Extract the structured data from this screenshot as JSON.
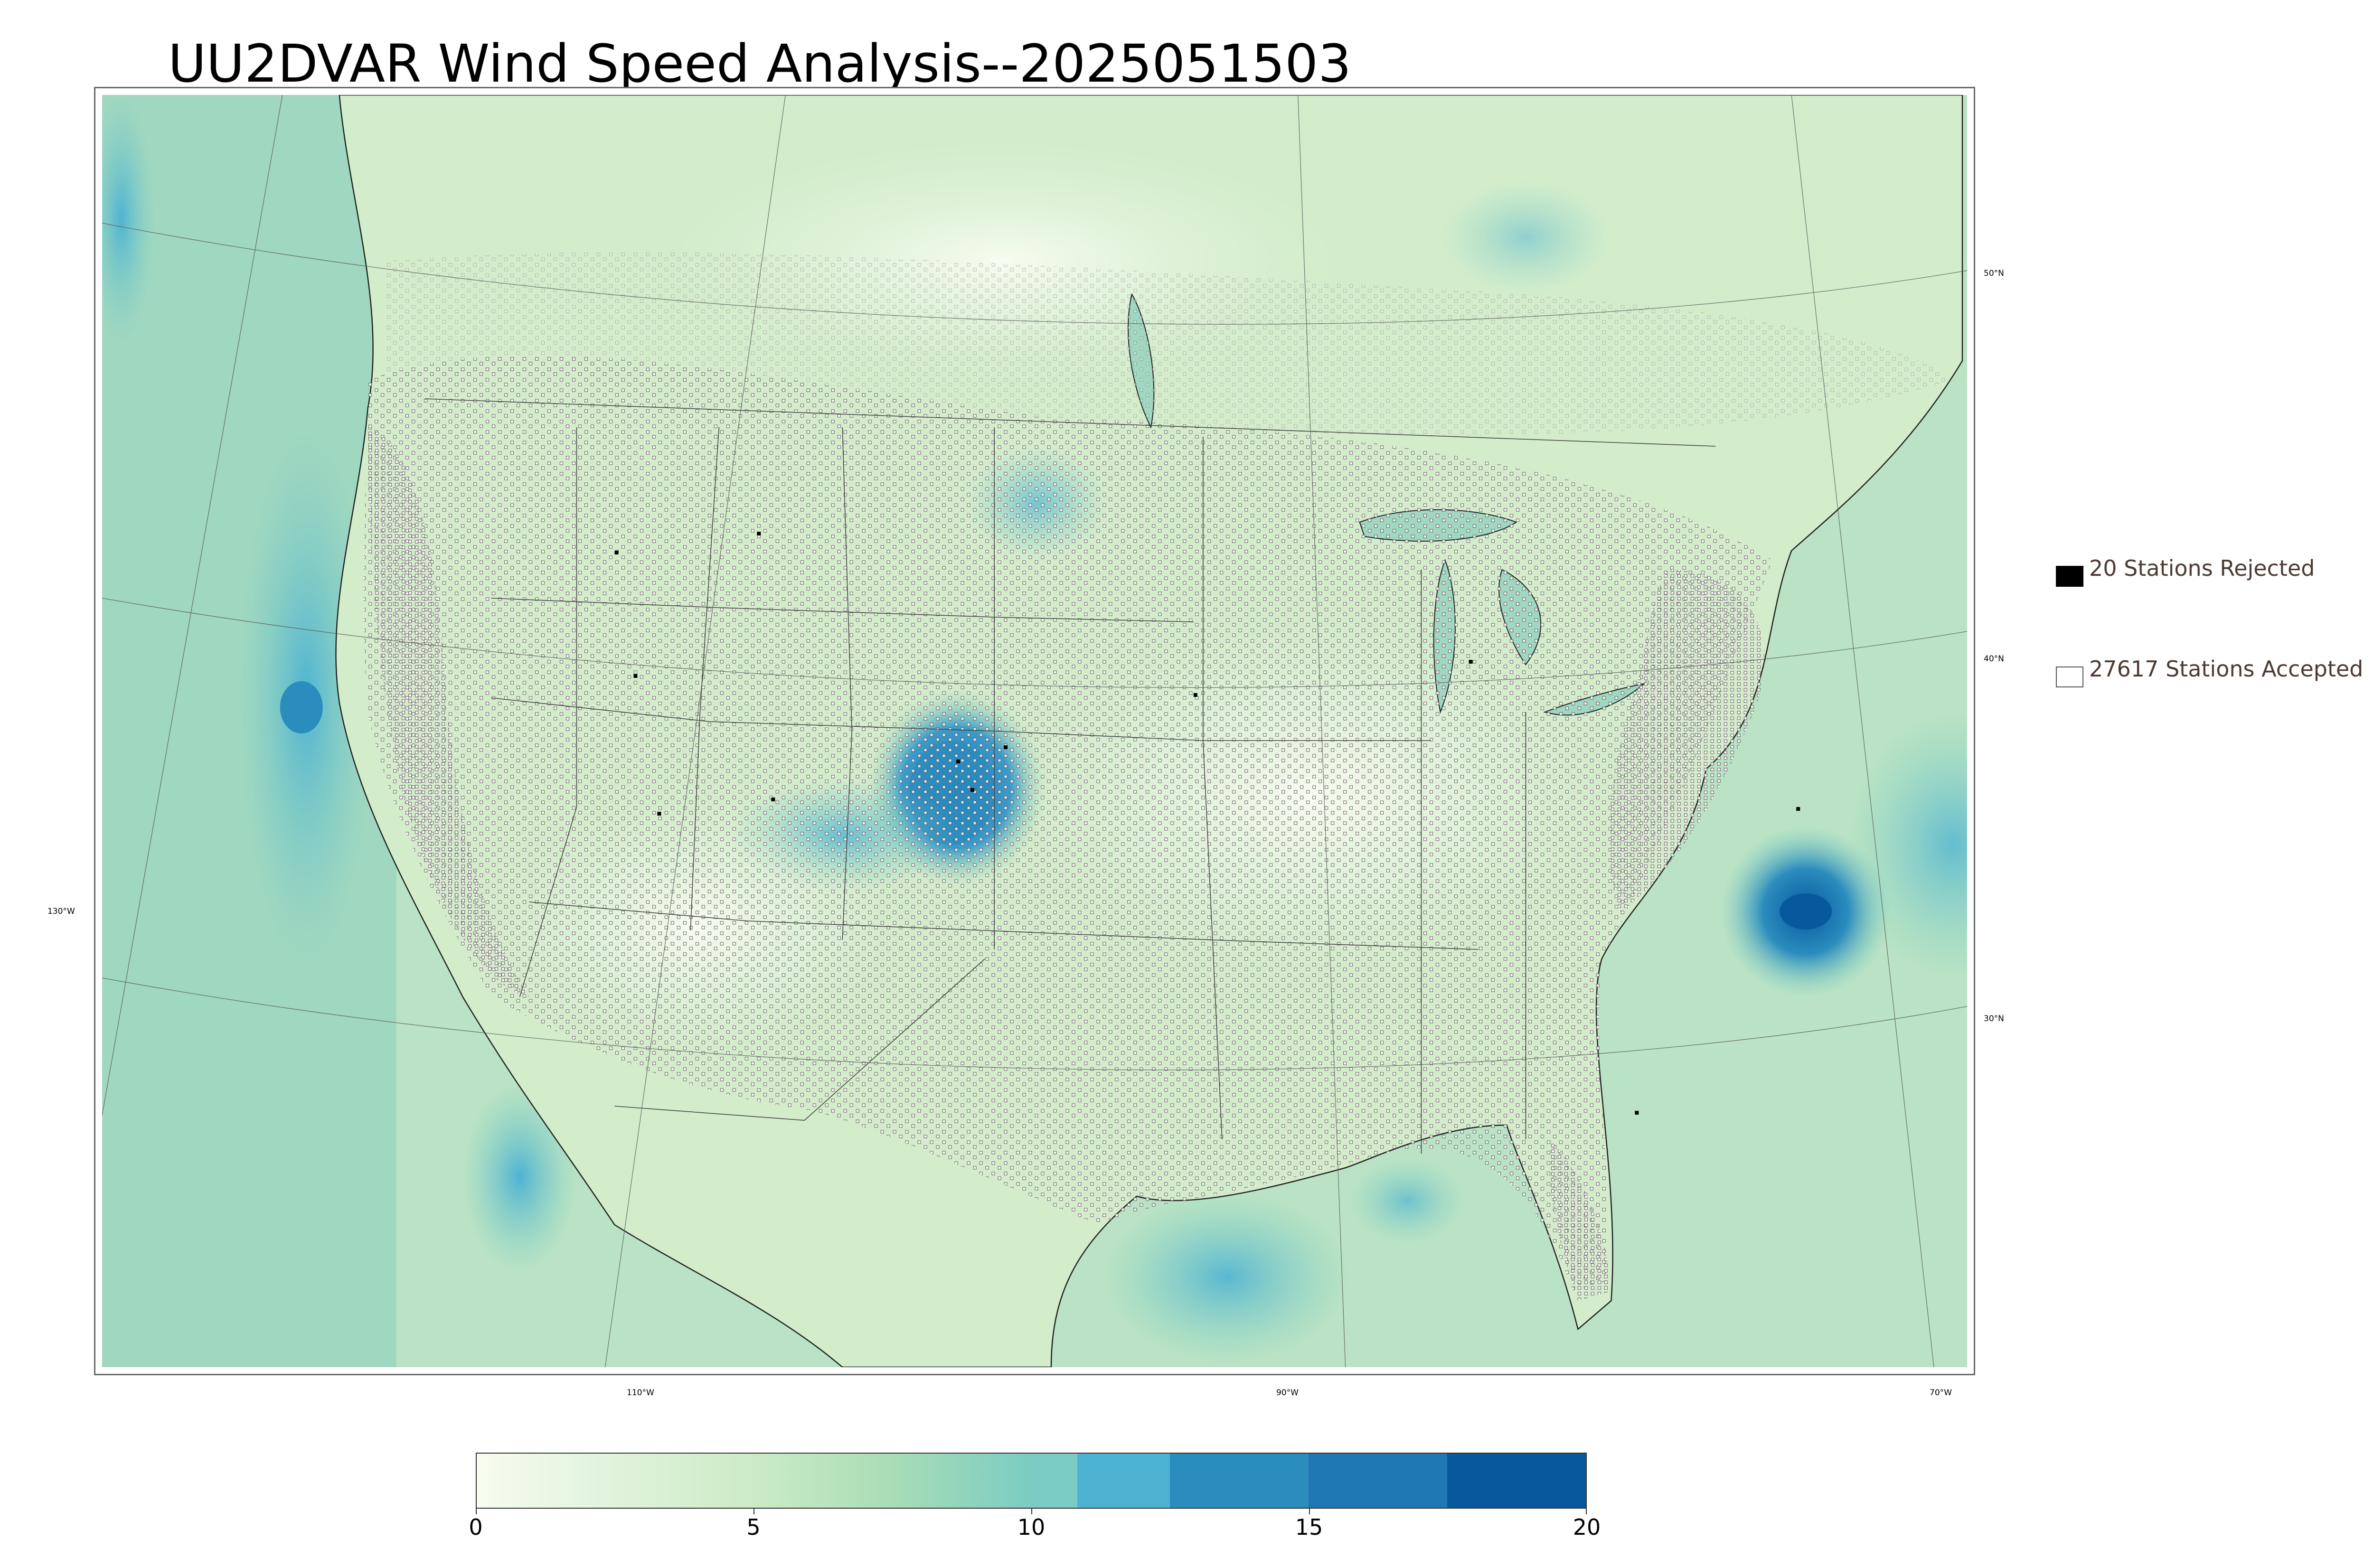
{
  "title": "UU2DVAR Wind Speed Analysis--2025051503",
  "graticule": {
    "lat_labels": [
      "50°N",
      "40°N",
      "30°N"
    ],
    "lon_labels": [
      "130°W",
      "110°W",
      "90°W",
      "70°W"
    ]
  },
  "legend": {
    "rejected": {
      "label": "20 Stations Rejected",
      "count": 20,
      "swatch_color": "#000000"
    },
    "accepted": {
      "label": "27617 Stations Accepted",
      "count": 27617,
      "swatch_color": "#ffffff"
    }
  },
  "colorbar": {
    "min": 0,
    "max": 20,
    "tick_labels": [
      "0",
      "5",
      "10",
      "15",
      "20"
    ],
    "tick_values": [
      0,
      5,
      10,
      15,
      20
    ],
    "colors": [
      "#f7fcf0",
      "#e0f3db",
      "#ccebc5",
      "#a8ddb5",
      "#7bccc4",
      "#4eb3d3",
      "#2b8cbe",
      "#1f78b4",
      "#08589e"
    ]
  },
  "colors": {
    "land_base": "#d6efcf",
    "ocean_base": "#a8dcc0",
    "border_lines": "#333333",
    "station_stroke": "#6b5a66"
  }
}
